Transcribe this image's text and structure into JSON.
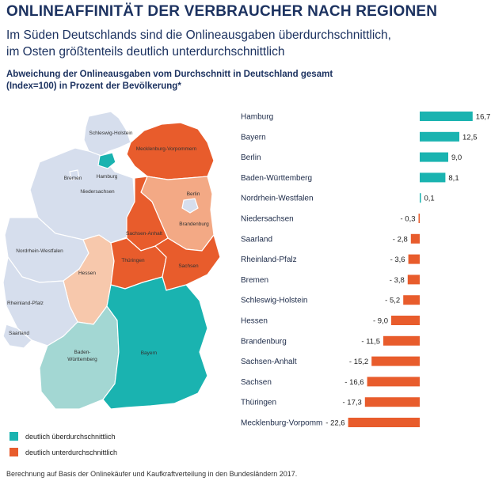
{
  "title": "ONLINEAFFINITÄT DER VERBRAUCHER NACH REGIONEN",
  "subtitle_line1": "Im Süden Deutschlands sind die Onlineausgaben überdurchschnittlich,",
  "subtitle_line2": "im Osten größtenteils deutlich unterdurchschnittlich",
  "description_line1": "Abweichung der Onlineausgaben vom Durchschnitt in Deutschland gesamt",
  "description_line2": "(Index=100) in Prozent der Bevölkerung*",
  "colors": {
    "above": "#1ab3b0",
    "below": "#e85c2c",
    "mild_above": "#a3d7d3",
    "mild_below": "#f3a985",
    "light_below": "#f7c8ac",
    "neutral": "#d6deed"
  },
  "legend": [
    {
      "label": "deutlich überdurchschnittlich",
      "color": "#1ab3b0"
    },
    {
      "label": "deutlich unterdurchschnittlich",
      "color": "#e85c2c"
    }
  ],
  "footnote": "Berechnung auf Basis der Onlinekäufer und Kaufkraftverteilung in den Bundesländern 2017.",
  "map_labels": {
    "schleswig_holstein": "Schleswig-Holstein",
    "hamburg": "Hamburg",
    "mecklenburg_vorpommern": "Mecklenburg-Vorpommern",
    "bremen": "Bremen",
    "niedersachsen": "Niedersachsen",
    "berlin": "Berlin",
    "brandenburg": "Brandenburg",
    "sachsen_anhalt": "Sachsen-Anhalt",
    "nordrhein_westfalen": "Nordrhein-Westfalen",
    "hessen": "Hessen",
    "thueringen": "Thüringen",
    "sachsen": "Sachsen",
    "rheinland_pfalz": "Rheinland-Pfalz",
    "saarland": "Saarland",
    "baden_wuerttemberg": "Baden-Württemberg",
    "bayern": "Bayern"
  },
  "chart_data": {
    "type": "bar",
    "orientation": "horizontal",
    "title": "Abweichung der Onlineausgaben vom Durchschnitt in Deutschland gesamt (Index=100) in Prozent der Bevölkerung*",
    "categories": [
      "Hamburg",
      "Bayern",
      "Berlin",
      "Baden-Württemberg",
      "Nordrhein-Westfalen",
      "Niedersachsen",
      "Saarland",
      "Rheinland-Pfalz",
      "Bremen",
      "Schleswig-Holstein",
      "Hessen",
      "Brandenburg",
      "Sachsen-Anhalt",
      "Sachsen",
      "Thüringen",
      "Mecklenburg-Vorpomm"
    ],
    "values": [
      16.7,
      12.5,
      9.0,
      8.1,
      0.1,
      -0.3,
      -2.8,
      -3.6,
      -3.8,
      -5.2,
      -9.0,
      -11.5,
      -15.2,
      -16.6,
      -17.3,
      -22.6
    ],
    "value_labels": [
      "16,7",
      "12,5",
      "9,0",
      "8,1",
      "0,1",
      "- 0,3",
      "- 2,8",
      "- 3,6",
      "- 3,8",
      "- 5,2",
      "- 9,0",
      "- 11,5",
      "- 15,2",
      "- 16,6",
      "- 17,3",
      "- 22,6"
    ],
    "xlim": [
      -22.6,
      16.7
    ],
    "grid": false,
    "legend": "bottom-left"
  }
}
